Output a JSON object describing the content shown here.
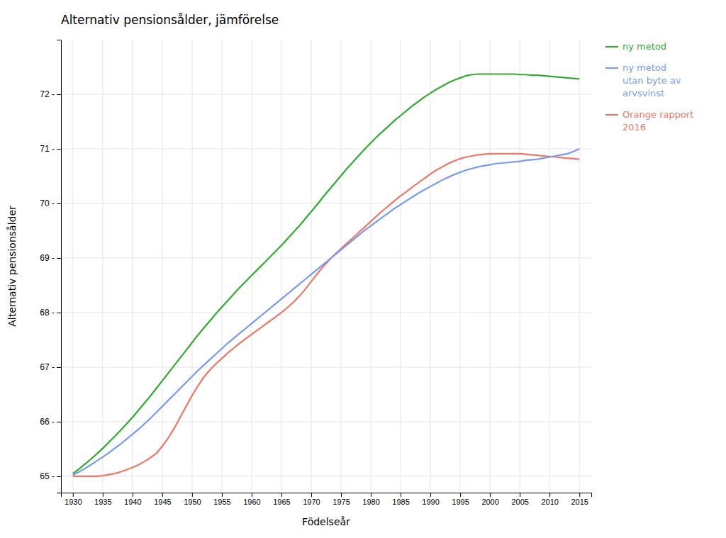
{
  "chart_data": {
    "type": "line",
    "title": "Alternativ pensionsålder, jämförelse",
    "x_label": "Födelseår",
    "y_label": "Alternativ pensionsålder",
    "xlim": [
      1928,
      2017
    ],
    "ylim": [
      64.7,
      73.0
    ],
    "xticks": [
      1930,
      1935,
      1940,
      1945,
      1950,
      1955,
      1960,
      1965,
      1970,
      1975,
      1980,
      1985,
      1990,
      1995,
      2000,
      2005,
      2010,
      2015
    ],
    "yticks": [
      {
        "value": 65,
        "label": "65 -"
      },
      {
        "value": 66,
        "label": "66 -"
      },
      {
        "value": 67,
        "label": "67 -"
      },
      {
        "value": 68,
        "label": "68 -"
      },
      {
        "value": 69,
        "label": "69 -"
      },
      {
        "value": 70,
        "label": "70 -"
      },
      {
        "value": 71,
        "label": "71 -"
      },
      {
        "value": 72,
        "label": "72 -"
      }
    ],
    "grid": true,
    "legend": "right",
    "x": [
      1930,
      1931,
      1932,
      1933,
      1934,
      1935,
      1936,
      1937,
      1938,
      1939,
      1940,
      1941,
      1942,
      1943,
      1944,
      1945,
      1946,
      1947,
      1948,
      1949,
      1950,
      1951,
      1952,
      1953,
      1954,
      1955,
      1956,
      1957,
      1958,
      1959,
      1960,
      1961,
      1962,
      1963,
      1964,
      1965,
      1966,
      1967,
      1968,
      1969,
      1970,
      1971,
      1972,
      1973,
      1974,
      1975,
      1976,
      1977,
      1978,
      1979,
      1980,
      1981,
      1982,
      1983,
      1984,
      1985,
      1986,
      1987,
      1988,
      1989,
      1990,
      1991,
      1992,
      1993,
      1994,
      1995,
      1996,
      1997,
      1998,
      1999,
      2000,
      2001,
      2002,
      2003,
      2004,
      2005,
      2006,
      2007,
      2008,
      2009,
      2010,
      2011,
      2012,
      2013,
      2014,
      2015
    ],
    "series": [
      {
        "name": "ny metod",
        "color": "#33AA33",
        "values": [
          65.05,
          65.13,
          65.22,
          65.31,
          65.41,
          65.51,
          65.62,
          65.73,
          65.84,
          65.96,
          66.08,
          66.21,
          66.34,
          66.47,
          66.61,
          66.75,
          66.89,
          67.03,
          67.17,
          67.31,
          67.45,
          67.59,
          67.72,
          67.85,
          67.98,
          68.1,
          68.22,
          68.34,
          68.46,
          68.57,
          68.68,
          68.79,
          68.9,
          69.01,
          69.12,
          69.23,
          69.35,
          69.47,
          69.59,
          69.72,
          69.85,
          69.98,
          70.12,
          70.25,
          70.38,
          70.51,
          70.64,
          70.76,
          70.88,
          71.0,
          71.11,
          71.22,
          71.32,
          71.42,
          71.52,
          71.61,
          71.7,
          71.79,
          71.87,
          71.95,
          72.02,
          72.09,
          72.15,
          72.21,
          72.26,
          72.3,
          72.34,
          72.36,
          72.37,
          72.37,
          72.37,
          72.37,
          72.37,
          72.37,
          72.37,
          72.36,
          72.36,
          72.35,
          72.35,
          72.34,
          72.33,
          72.32,
          72.31,
          72.3,
          72.29,
          72.28
        ]
      },
      {
        "name": "ny metod\nutan byte av\narvsvinst",
        "color": "#7799EE",
        "values": [
          65.02,
          65.08,
          65.14,
          65.21,
          65.28,
          65.35,
          65.43,
          65.51,
          65.59,
          65.68,
          65.77,
          65.86,
          65.96,
          66.06,
          66.17,
          66.28,
          66.39,
          66.5,
          66.61,
          66.72,
          66.83,
          66.94,
          67.04,
          67.14,
          67.24,
          67.34,
          67.44,
          67.53,
          67.62,
          67.71,
          67.8,
          67.89,
          67.98,
          68.07,
          68.16,
          68.25,
          68.34,
          68.43,
          68.52,
          68.61,
          68.7,
          68.79,
          68.88,
          68.97,
          69.06,
          69.15,
          69.24,
          69.33,
          69.42,
          69.51,
          69.59,
          69.67,
          69.75,
          69.83,
          69.91,
          69.98,
          70.05,
          70.12,
          70.19,
          70.25,
          70.31,
          70.37,
          70.43,
          70.48,
          70.53,
          70.57,
          70.61,
          70.64,
          70.67,
          70.69,
          70.71,
          70.73,
          70.74,
          70.75,
          70.76,
          70.77,
          70.79,
          70.8,
          70.81,
          70.83,
          70.85,
          70.87,
          70.89,
          70.91,
          70.95,
          71.0
        ]
      },
      {
        "name": "Orange rapport\n2016",
        "color": "#EE7766",
        "values": [
          65.0,
          65.0,
          65.0,
          65.0,
          65.0,
          65.01,
          65.03,
          65.05,
          65.08,
          65.12,
          65.16,
          65.21,
          65.27,
          65.34,
          65.42,
          65.55,
          65.7,
          65.88,
          66.08,
          66.28,
          66.48,
          66.66,
          66.82,
          66.95,
          67.06,
          67.16,
          67.26,
          67.35,
          67.44,
          67.52,
          67.6,
          67.68,
          67.76,
          67.84,
          67.92,
          68.0,
          68.09,
          68.19,
          68.3,
          68.43,
          68.57,
          68.71,
          68.84,
          68.96,
          69.07,
          69.17,
          69.27,
          69.37,
          69.47,
          69.57,
          69.67,
          69.77,
          69.87,
          69.96,
          70.05,
          70.14,
          70.22,
          70.3,
          70.38,
          70.46,
          70.54,
          70.61,
          70.67,
          70.73,
          70.78,
          70.82,
          70.85,
          70.87,
          70.89,
          70.9,
          70.91,
          70.91,
          70.91,
          70.91,
          70.91,
          70.91,
          70.9,
          70.89,
          70.88,
          70.87,
          70.86,
          70.85,
          70.84,
          70.83,
          70.82,
          70.81
        ]
      }
    ]
  }
}
